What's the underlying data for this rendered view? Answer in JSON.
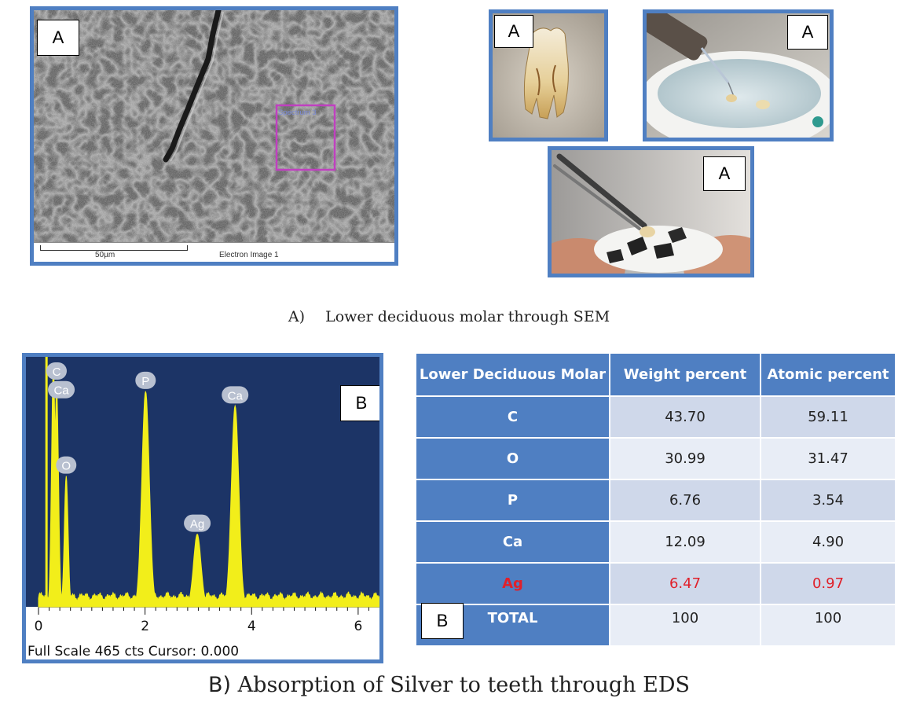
{
  "panel_label_a": "A",
  "panel_label_b": "B",
  "sem": {
    "spectrum_label": "Spectrum 3",
    "scale_bar": "50µm",
    "image_label": "Electron Image 1"
  },
  "caption_a": {
    "prefix": "A)",
    "text": "Lower deciduous molar through SEM"
  },
  "caption_b": {
    "prefix": "B)",
    "text": "Absorption of Silver to teeth through EDS"
  },
  "eds_spectrum": {
    "footer": "Full Scale 465 cts Cursor: 0.000",
    "x_ticks": [
      "0",
      "2",
      "4",
      "6"
    ],
    "xlim": [
      0,
      6.4
    ],
    "peaks": [
      {
        "label": "C",
        "energy": 0.28,
        "height": 1.0
      },
      {
        "label": "Ca",
        "energy": 0.34,
        "height": 0.91
      },
      {
        "label": "O",
        "energy": 0.52,
        "height": 0.54
      },
      {
        "label": "P",
        "energy": 2.01,
        "height": 0.89
      },
      {
        "label": "Ag",
        "energy": 2.98,
        "height": 0.3
      },
      {
        "label": "Ca",
        "energy": 3.69,
        "height": 0.83
      }
    ],
    "colors": {
      "background": "#1c3466",
      "trace": "#f2ee1a",
      "badge": "#b8c0d0"
    }
  },
  "table": {
    "headers": [
      "Lower Deciduous Molar",
      "Weight percent",
      "Atomic percent"
    ],
    "rows": [
      {
        "element": "C",
        "weight": "43.70",
        "atomic": "59.11"
      },
      {
        "element": "O",
        "weight": "30.99",
        "atomic": "31.47"
      },
      {
        "element": "P",
        "weight": "6.76",
        "atomic": "3.54"
      },
      {
        "element": "Ca",
        "weight": "12.09",
        "atomic": "4.90"
      },
      {
        "element": "Ag",
        "weight": "6.47",
        "atomic": "0.97"
      },
      {
        "element": "TOTAL",
        "weight": "100",
        "atomic": "100"
      }
    ],
    "highlight_color": "#e0202a",
    "header_color": "#4f7fc2"
  }
}
